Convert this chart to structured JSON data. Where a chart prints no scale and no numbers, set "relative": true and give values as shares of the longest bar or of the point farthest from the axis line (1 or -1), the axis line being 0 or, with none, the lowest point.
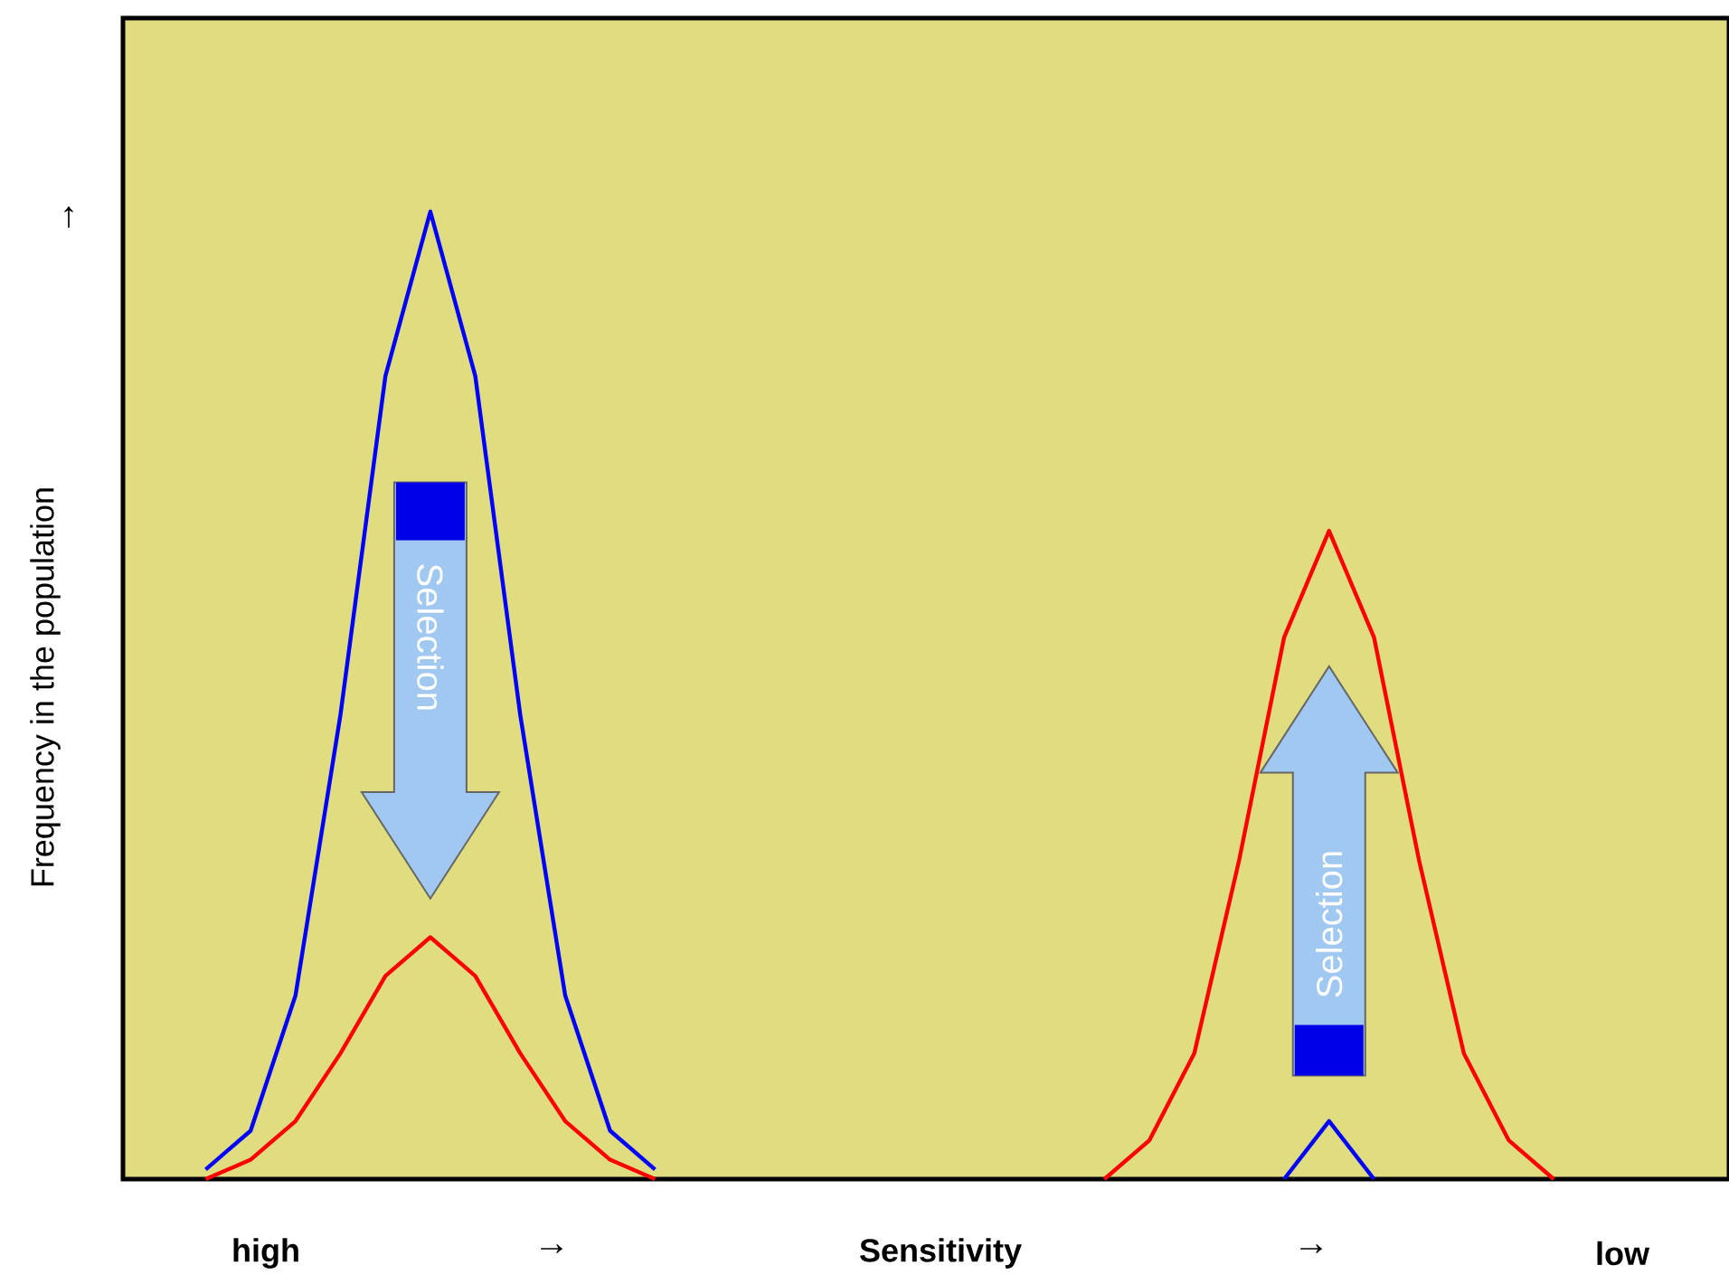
{
  "chart_data": {
    "type": "line",
    "relative": true,
    "xlabel": "Sensitivity",
    "ylabel": "Frequency in the population",
    "categories": [
      null,
      null,
      null,
      null,
      null,
      null,
      null,
      null,
      null,
      null,
      null,
      null,
      null,
      null,
      null,
      null,
      null,
      null,
      null,
      null,
      null,
      null,
      null,
      null,
      null,
      null,
      null,
      null,
      null,
      null,
      null,
      null,
      null,
      null,
      null
    ],
    "series": [
      {
        "color": "#0000ff",
        "values": [
          null,
          0.01,
          0.05,
          0.19,
          0.48,
          0.83,
          1,
          0.83,
          0.48,
          0.19,
          0.05,
          0.01,
          null,
          null,
          null,
          null,
          null,
          null,
          null,
          null,
          null,
          null,
          null,
          null,
          null,
          null,
          null,
          null,
          null,
          null,
          null,
          null,
          null,
          null,
          null
        ]
      },
      {
        "color": "#ff0000",
        "values": [
          null,
          0,
          0.02,
          0.06,
          0.13,
          0.21,
          0.25,
          0.21,
          0.13,
          0.06,
          0.02,
          0,
          null,
          null,
          null,
          null,
          null,
          null,
          null,
          null,
          null,
          null,
          null,
          null,
          null,
          null,
          null,
          null,
          null,
          null,
          null,
          null,
          null,
          null,
          null
        ]
      },
      {
        "color": "#ff0000",
        "values": [
          null,
          null,
          null,
          null,
          null,
          null,
          null,
          null,
          null,
          null,
          null,
          null,
          null,
          null,
          null,
          null,
          null,
          null,
          null,
          null,
          null,
          0,
          0.04,
          0.13,
          0.33,
          0.56,
          0.67,
          0.56,
          0.33,
          0.13,
          0.04,
          0,
          null,
          null,
          null
        ]
      },
      {
        "color": "#0000ff",
        "values": [
          null,
          null,
          null,
          null,
          null,
          null,
          null,
          null,
          null,
          null,
          null,
          null,
          null,
          null,
          null,
          null,
          null,
          null,
          null,
          null,
          null,
          null,
          null,
          null,
          null,
          0,
          0.06,
          0,
          null,
          null,
          null,
          null,
          null,
          null,
          null
        ]
      }
    ],
    "annotations": [
      "high",
      "→",
      "→",
      "low",
      "↑",
      "Selection",
      "Selection"
    ]
  }
}
